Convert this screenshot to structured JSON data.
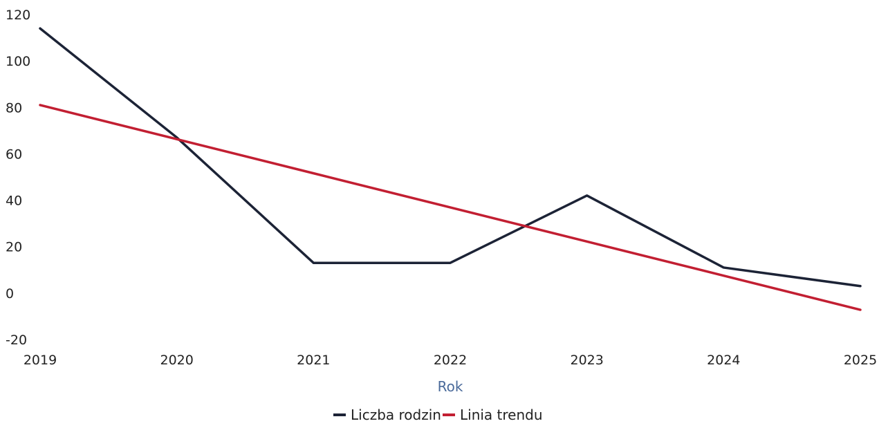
{
  "chart_data": {
    "type": "line",
    "x": [
      2019,
      2020,
      2021,
      2022,
      2023,
      2024,
      2025
    ],
    "xlabel": "Rok",
    "ylabel": "",
    "ylim": [
      -20,
      120
    ],
    "yticks": [
      -20,
      0,
      20,
      40,
      60,
      80,
      100,
      120
    ],
    "grid": false,
    "legend_position": "bottom",
    "series": [
      {
        "name": "Liczba rodzin",
        "color": "#1c2336",
        "values": [
          114,
          67,
          13,
          13,
          42,
          11,
          3
        ]
      },
      {
        "name": "Linia trendu",
        "color": "#c21f32",
        "values": [
          81,
          66.3,
          51.6,
          36.9,
          22.2,
          7.5,
          -7.2
        ]
      }
    ]
  }
}
